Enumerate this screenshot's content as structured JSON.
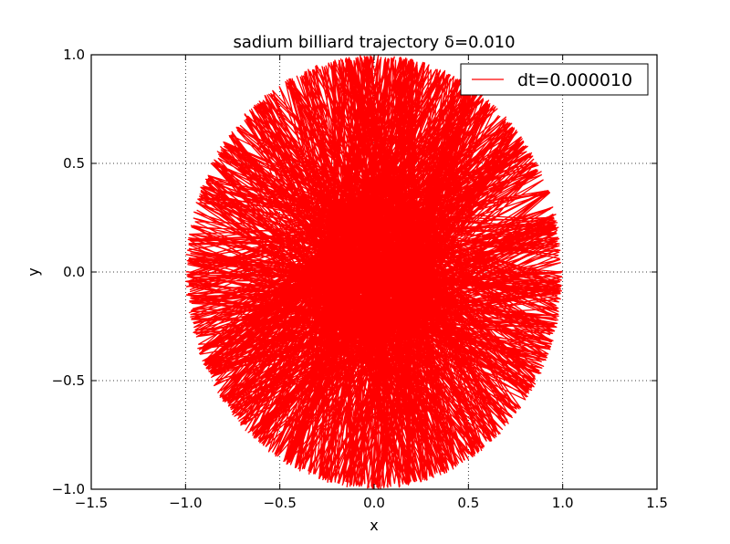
{
  "chart_data": {
    "type": "line",
    "title": "sadium billiard trajectory δ=0.010",
    "xlabel": "x",
    "ylabel": "y",
    "xlim": [
      -1.5,
      1.5
    ],
    "ylim": [
      -1.0,
      1.0
    ],
    "xticks": [
      -1.5,
      -1.0,
      -0.5,
      0.0,
      0.5,
      1.0,
      1.5
    ],
    "xtick_labels": [
      "−1.5",
      "−1.0",
      "−0.5",
      "0.0",
      "0.5",
      "1.0",
      "1.5"
    ],
    "yticks": [
      -1.0,
      -0.5,
      0.0,
      0.5,
      1.0
    ],
    "ytick_labels": [
      "−1.0",
      "−0.5",
      "0.0",
      "0.5",
      "1.0"
    ],
    "grid": true,
    "legend_position": "top-right",
    "series": [
      {
        "name": "dt=0.000010",
        "color": "#ff0000",
        "shape": "circle trajectory bouncing between boundary points",
        "boundary_radius": 1.0,
        "center": [
          0.0,
          0.0
        ]
      }
    ]
  }
}
